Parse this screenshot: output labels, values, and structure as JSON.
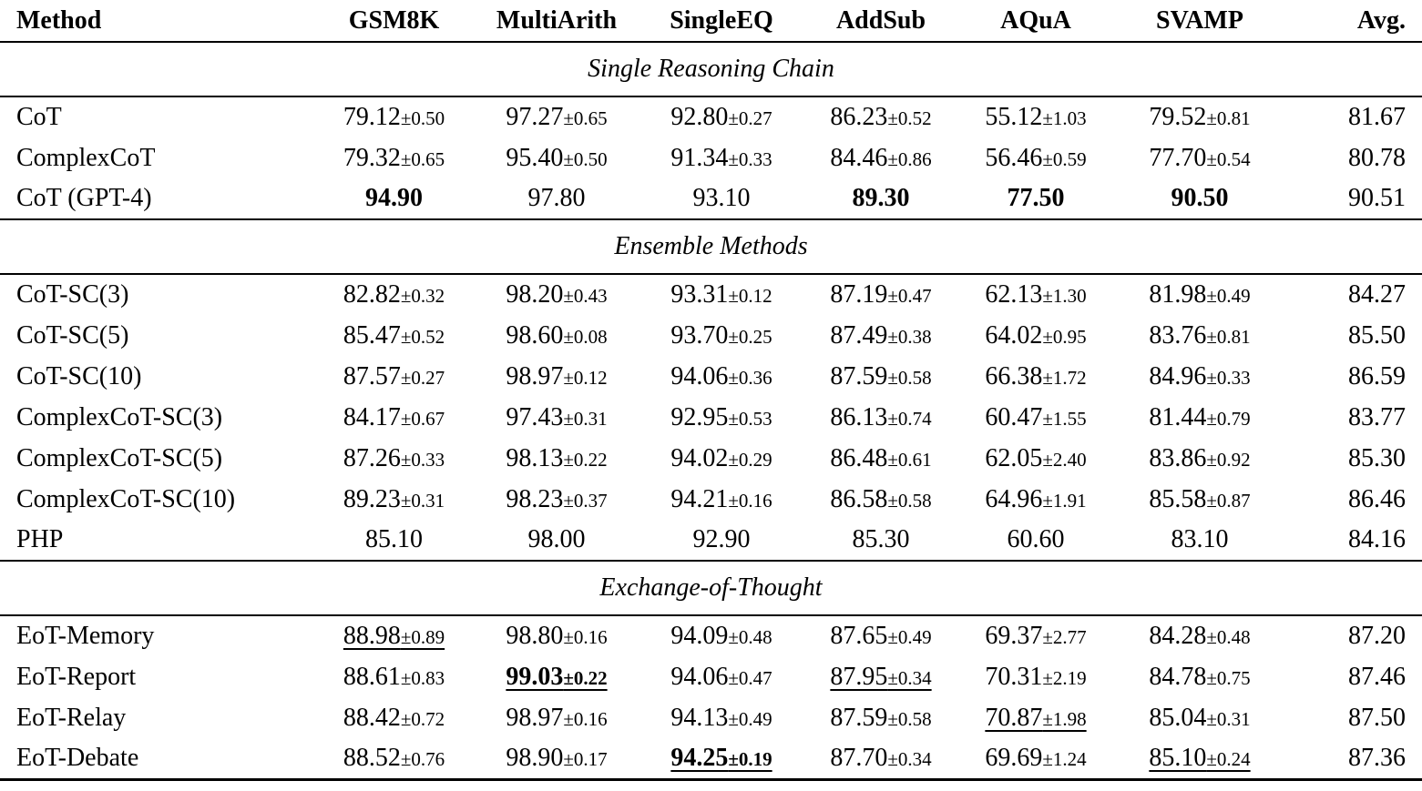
{
  "colors": {
    "background": "#ffffff",
    "text": "#000000",
    "rule": "#000000"
  },
  "table": {
    "columns": [
      "Method",
      "GSM8K",
      "MultiArith",
      "SingleEQ",
      "AddSub",
      "AQuA",
      "SVAMP",
      "Avg."
    ],
    "sections": [
      {
        "title": "Single Reasoning Chain",
        "rows": [
          {
            "method": "CoT",
            "cells": [
              {
                "v": "79.12",
                "pm": "±0.50"
              },
              {
                "v": "97.27",
                "pm": "±0.65"
              },
              {
                "v": "92.80",
                "pm": "±0.27"
              },
              {
                "v": "86.23",
                "pm": "±0.52"
              },
              {
                "v": "55.12",
                "pm": "±1.03"
              },
              {
                "v": "79.52",
                "pm": "±0.81"
              },
              {
                "v": "81.67"
              }
            ]
          },
          {
            "method": "ComplexCoT",
            "cells": [
              {
                "v": "79.32",
                "pm": "±0.65"
              },
              {
                "v": "95.40",
                "pm": "±0.50"
              },
              {
                "v": "91.34",
                "pm": "±0.33"
              },
              {
                "v": "84.46",
                "pm": "±0.86"
              },
              {
                "v": "56.46",
                "pm": "±0.59"
              },
              {
                "v": "77.70",
                "pm": "±0.54"
              },
              {
                "v": "80.78"
              }
            ]
          },
          {
            "method": "CoT (GPT-4)",
            "cells": [
              {
                "v": "94.90",
                "bold": true
              },
              {
                "v": "97.80"
              },
              {
                "v": "93.10"
              },
              {
                "v": "89.30",
                "bold": true
              },
              {
                "v": "77.50",
                "bold": true
              },
              {
                "v": "90.50",
                "bold": true
              },
              {
                "v": "90.51"
              }
            ]
          }
        ]
      },
      {
        "title": "Ensemble Methods",
        "rows": [
          {
            "method": "CoT-SC(3)",
            "cells": [
              {
                "v": "82.82",
                "pm": "±0.32"
              },
              {
                "v": "98.20",
                "pm": "±0.43"
              },
              {
                "v": "93.31",
                "pm": "±0.12"
              },
              {
                "v": "87.19",
                "pm": "±0.47"
              },
              {
                "v": "62.13",
                "pm": "±1.30"
              },
              {
                "v": "81.98",
                "pm": "±0.49"
              },
              {
                "v": "84.27"
              }
            ]
          },
          {
            "method": "CoT-SC(5)",
            "cells": [
              {
                "v": "85.47",
                "pm": "±0.52"
              },
              {
                "v": "98.60",
                "pm": "±0.08"
              },
              {
                "v": "93.70",
                "pm": "±0.25"
              },
              {
                "v": "87.49",
                "pm": "±0.38"
              },
              {
                "v": "64.02",
                "pm": "±0.95"
              },
              {
                "v": "83.76",
                "pm": "±0.81"
              },
              {
                "v": "85.50"
              }
            ]
          },
          {
            "method": "CoT-SC(10)",
            "cells": [
              {
                "v": "87.57",
                "pm": "±0.27"
              },
              {
                "v": "98.97",
                "pm": "±0.12"
              },
              {
                "v": "94.06",
                "pm": "±0.36"
              },
              {
                "v": "87.59",
                "pm": "±0.58"
              },
              {
                "v": "66.38",
                "pm": "±1.72"
              },
              {
                "v": "84.96",
                "pm": "±0.33"
              },
              {
                "v": "86.59"
              }
            ]
          },
          {
            "method": "ComplexCoT-SC(3)",
            "cells": [
              {
                "v": "84.17",
                "pm": "±0.67"
              },
              {
                "v": "97.43",
                "pm": "±0.31"
              },
              {
                "v": "92.95",
                "pm": "±0.53"
              },
              {
                "v": "86.13",
                "pm": "±0.74"
              },
              {
                "v": "60.47",
                "pm": "±1.55"
              },
              {
                "v": "81.44",
                "pm": "±0.79"
              },
              {
                "v": "83.77"
              }
            ]
          },
          {
            "method": "ComplexCoT-SC(5)",
            "cells": [
              {
                "v": "87.26",
                "pm": "±0.33"
              },
              {
                "v": "98.13",
                "pm": "±0.22"
              },
              {
                "v": "94.02",
                "pm": "±0.29"
              },
              {
                "v": "86.48",
                "pm": "±0.61"
              },
              {
                "v": "62.05",
                "pm": "±2.40"
              },
              {
                "v": "83.86",
                "pm": "±0.92"
              },
              {
                "v": "85.30"
              }
            ]
          },
          {
            "method": "ComplexCoT-SC(10)",
            "cells": [
              {
                "v": "89.23",
                "pm": "±0.31"
              },
              {
                "v": "98.23",
                "pm": "±0.37"
              },
              {
                "v": "94.21",
                "pm": "±0.16"
              },
              {
                "v": "86.58",
                "pm": "±0.58"
              },
              {
                "v": "64.96",
                "pm": "±1.91"
              },
              {
                "v": "85.58",
                "pm": "±0.87"
              },
              {
                "v": "86.46"
              }
            ]
          },
          {
            "method": "PHP",
            "cells": [
              {
                "v": "85.10"
              },
              {
                "v": "98.00"
              },
              {
                "v": "92.90"
              },
              {
                "v": "85.30"
              },
              {
                "v": "60.60"
              },
              {
                "v": "83.10"
              },
              {
                "v": "84.16"
              }
            ]
          }
        ]
      },
      {
        "title": "Exchange-of-Thought",
        "rows": [
          {
            "method": "EoT-Memory",
            "cells": [
              {
                "v": "88.98",
                "pm": "±0.89",
                "underline": true
              },
              {
                "v": "98.80",
                "pm": "±0.16"
              },
              {
                "v": "94.09",
                "pm": "±0.48"
              },
              {
                "v": "87.65",
                "pm": "±0.49"
              },
              {
                "v": "69.37",
                "pm": "±2.77"
              },
              {
                "v": "84.28",
                "pm": "±0.48"
              },
              {
                "v": "87.20"
              }
            ]
          },
          {
            "method": "EoT-Report",
            "cells": [
              {
                "v": "88.61",
                "pm": "±0.83"
              },
              {
                "v": "99.03",
                "pm": "±0.22",
                "bold": true,
                "underline": true
              },
              {
                "v": "94.06",
                "pm": "±0.47"
              },
              {
                "v": "87.95",
                "pm": "±0.34",
                "underline": true
              },
              {
                "v": "70.31",
                "pm": "±2.19"
              },
              {
                "v": "84.78",
                "pm": "±0.75"
              },
              {
                "v": "87.46"
              }
            ]
          },
          {
            "method": "EoT-Relay",
            "cells": [
              {
                "v": "88.42",
                "pm": "±0.72"
              },
              {
                "v": "98.97",
                "pm": "±0.16"
              },
              {
                "v": "94.13",
                "pm": "±0.49"
              },
              {
                "v": "87.59",
                "pm": "±0.58"
              },
              {
                "v": "70.87",
                "pm": "±1.98",
                "underline": true
              },
              {
                "v": "85.04",
                "pm": "±0.31"
              },
              {
                "v": "87.50"
              }
            ]
          },
          {
            "method": "EoT-Debate",
            "cells": [
              {
                "v": "88.52",
                "pm": "±0.76"
              },
              {
                "v": "98.90",
                "pm": "±0.17"
              },
              {
                "v": "94.25",
                "pm": "±0.19",
                "bold": true,
                "underline": true
              },
              {
                "v": "87.70",
                "pm": "±0.34"
              },
              {
                "v": "69.69",
                "pm": "±1.24"
              },
              {
                "v": "85.10",
                "pm": "±0.24",
                "underline": true
              },
              {
                "v": "87.36"
              }
            ]
          }
        ]
      }
    ]
  }
}
